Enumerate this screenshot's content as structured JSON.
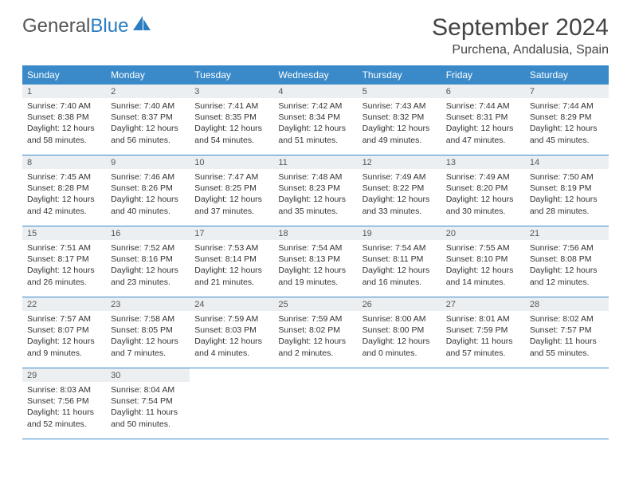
{
  "logo": {
    "part1": "General",
    "part2": "Blue"
  },
  "title": "September 2024",
  "location": "Purchena, Andalusia, Spain",
  "colors": {
    "header_bg": "#3a8ac9",
    "header_fg": "#ffffff",
    "daynum_bg": "#eceff1",
    "border": "#3a8ac9",
    "logo_blue": "#2b7cc0"
  },
  "dayNames": [
    "Sunday",
    "Monday",
    "Tuesday",
    "Wednesday",
    "Thursday",
    "Friday",
    "Saturday"
  ],
  "weeks": [
    [
      {
        "n": "1",
        "sr": "Sunrise: 7:40 AM",
        "ss": "Sunset: 8:38 PM",
        "d1": "Daylight: 12 hours",
        "d2": "and 58 minutes."
      },
      {
        "n": "2",
        "sr": "Sunrise: 7:40 AM",
        "ss": "Sunset: 8:37 PM",
        "d1": "Daylight: 12 hours",
        "d2": "and 56 minutes."
      },
      {
        "n": "3",
        "sr": "Sunrise: 7:41 AM",
        "ss": "Sunset: 8:35 PM",
        "d1": "Daylight: 12 hours",
        "d2": "and 54 minutes."
      },
      {
        "n": "4",
        "sr": "Sunrise: 7:42 AM",
        "ss": "Sunset: 8:34 PM",
        "d1": "Daylight: 12 hours",
        "d2": "and 51 minutes."
      },
      {
        "n": "5",
        "sr": "Sunrise: 7:43 AM",
        "ss": "Sunset: 8:32 PM",
        "d1": "Daylight: 12 hours",
        "d2": "and 49 minutes."
      },
      {
        "n": "6",
        "sr": "Sunrise: 7:44 AM",
        "ss": "Sunset: 8:31 PM",
        "d1": "Daylight: 12 hours",
        "d2": "and 47 minutes."
      },
      {
        "n": "7",
        "sr": "Sunrise: 7:44 AM",
        "ss": "Sunset: 8:29 PM",
        "d1": "Daylight: 12 hours",
        "d2": "and 45 minutes."
      }
    ],
    [
      {
        "n": "8",
        "sr": "Sunrise: 7:45 AM",
        "ss": "Sunset: 8:28 PM",
        "d1": "Daylight: 12 hours",
        "d2": "and 42 minutes."
      },
      {
        "n": "9",
        "sr": "Sunrise: 7:46 AM",
        "ss": "Sunset: 8:26 PM",
        "d1": "Daylight: 12 hours",
        "d2": "and 40 minutes."
      },
      {
        "n": "10",
        "sr": "Sunrise: 7:47 AM",
        "ss": "Sunset: 8:25 PM",
        "d1": "Daylight: 12 hours",
        "d2": "and 37 minutes."
      },
      {
        "n": "11",
        "sr": "Sunrise: 7:48 AM",
        "ss": "Sunset: 8:23 PM",
        "d1": "Daylight: 12 hours",
        "d2": "and 35 minutes."
      },
      {
        "n": "12",
        "sr": "Sunrise: 7:49 AM",
        "ss": "Sunset: 8:22 PM",
        "d1": "Daylight: 12 hours",
        "d2": "and 33 minutes."
      },
      {
        "n": "13",
        "sr": "Sunrise: 7:49 AM",
        "ss": "Sunset: 8:20 PM",
        "d1": "Daylight: 12 hours",
        "d2": "and 30 minutes."
      },
      {
        "n": "14",
        "sr": "Sunrise: 7:50 AM",
        "ss": "Sunset: 8:19 PM",
        "d1": "Daylight: 12 hours",
        "d2": "and 28 minutes."
      }
    ],
    [
      {
        "n": "15",
        "sr": "Sunrise: 7:51 AM",
        "ss": "Sunset: 8:17 PM",
        "d1": "Daylight: 12 hours",
        "d2": "and 26 minutes."
      },
      {
        "n": "16",
        "sr": "Sunrise: 7:52 AM",
        "ss": "Sunset: 8:16 PM",
        "d1": "Daylight: 12 hours",
        "d2": "and 23 minutes."
      },
      {
        "n": "17",
        "sr": "Sunrise: 7:53 AM",
        "ss": "Sunset: 8:14 PM",
        "d1": "Daylight: 12 hours",
        "d2": "and 21 minutes."
      },
      {
        "n": "18",
        "sr": "Sunrise: 7:54 AM",
        "ss": "Sunset: 8:13 PM",
        "d1": "Daylight: 12 hours",
        "d2": "and 19 minutes."
      },
      {
        "n": "19",
        "sr": "Sunrise: 7:54 AM",
        "ss": "Sunset: 8:11 PM",
        "d1": "Daylight: 12 hours",
        "d2": "and 16 minutes."
      },
      {
        "n": "20",
        "sr": "Sunrise: 7:55 AM",
        "ss": "Sunset: 8:10 PM",
        "d1": "Daylight: 12 hours",
        "d2": "and 14 minutes."
      },
      {
        "n": "21",
        "sr": "Sunrise: 7:56 AM",
        "ss": "Sunset: 8:08 PM",
        "d1": "Daylight: 12 hours",
        "d2": "and 12 minutes."
      }
    ],
    [
      {
        "n": "22",
        "sr": "Sunrise: 7:57 AM",
        "ss": "Sunset: 8:07 PM",
        "d1": "Daylight: 12 hours",
        "d2": "and 9 minutes."
      },
      {
        "n": "23",
        "sr": "Sunrise: 7:58 AM",
        "ss": "Sunset: 8:05 PM",
        "d1": "Daylight: 12 hours",
        "d2": "and 7 minutes."
      },
      {
        "n": "24",
        "sr": "Sunrise: 7:59 AM",
        "ss": "Sunset: 8:03 PM",
        "d1": "Daylight: 12 hours",
        "d2": "and 4 minutes."
      },
      {
        "n": "25",
        "sr": "Sunrise: 7:59 AM",
        "ss": "Sunset: 8:02 PM",
        "d1": "Daylight: 12 hours",
        "d2": "and 2 minutes."
      },
      {
        "n": "26",
        "sr": "Sunrise: 8:00 AM",
        "ss": "Sunset: 8:00 PM",
        "d1": "Daylight: 12 hours",
        "d2": "and 0 minutes."
      },
      {
        "n": "27",
        "sr": "Sunrise: 8:01 AM",
        "ss": "Sunset: 7:59 PM",
        "d1": "Daylight: 11 hours",
        "d2": "and 57 minutes."
      },
      {
        "n": "28",
        "sr": "Sunrise: 8:02 AM",
        "ss": "Sunset: 7:57 PM",
        "d1": "Daylight: 11 hours",
        "d2": "and 55 minutes."
      }
    ],
    [
      {
        "n": "29",
        "sr": "Sunrise: 8:03 AM",
        "ss": "Sunset: 7:56 PM",
        "d1": "Daylight: 11 hours",
        "d2": "and 52 minutes."
      },
      {
        "n": "30",
        "sr": "Sunrise: 8:04 AM",
        "ss": "Sunset: 7:54 PM",
        "d1": "Daylight: 11 hours",
        "d2": "and 50 minutes."
      },
      null,
      null,
      null,
      null,
      null
    ]
  ]
}
